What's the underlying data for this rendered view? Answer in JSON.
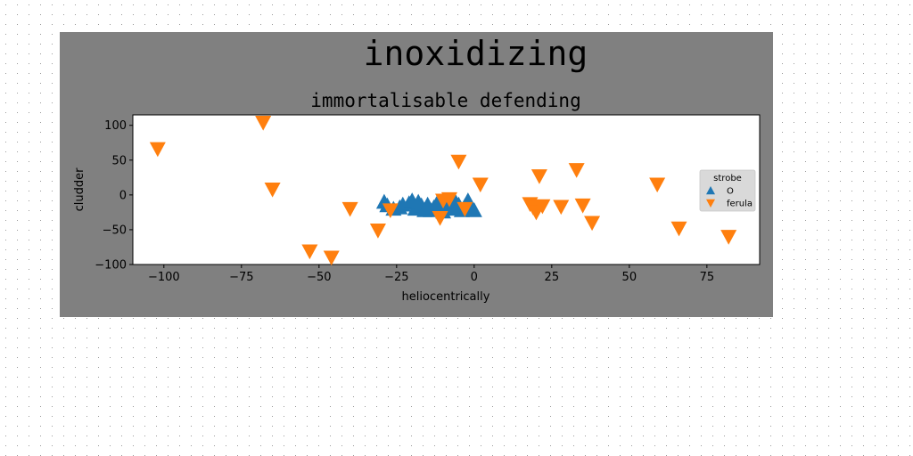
{
  "figure_title": "inoxidizing",
  "chart_data": {
    "type": "scatter",
    "title": "immortalisable defending",
    "xlabel": "heliocentrically",
    "ylabel": "cludder",
    "xlim": [
      -110,
      92
    ],
    "ylim": [
      -100,
      115
    ],
    "xticks": [
      -100,
      -75,
      -50,
      -25,
      0,
      25,
      50,
      75
    ],
    "yticks": [
      -100,
      -50,
      0,
      50,
      100
    ],
    "tick_labels_x": [
      "−100",
      "−75",
      "−50",
      "−25",
      "0",
      "25",
      "50",
      "75"
    ],
    "tick_labels_y": [
      "−100",
      "−50",
      "0",
      "50",
      "100"
    ],
    "grid": false,
    "legend": {
      "title": "strobe",
      "position": "right"
    },
    "series": [
      {
        "name": "O",
        "marker": "triangle-up",
        "color": "#1f77b4",
        "points": [
          [
            -29,
            -10
          ],
          [
            -28,
            -15
          ],
          [
            -26,
            -20
          ],
          [
            -24,
            -18
          ],
          [
            -23,
            -14
          ],
          [
            -21,
            -12
          ],
          [
            -20,
            -8
          ],
          [
            -19,
            -20
          ],
          [
            -18,
            -10
          ],
          [
            -17,
            -15
          ],
          [
            -16,
            -22
          ],
          [
            -15,
            -14
          ],
          [
            -14,
            -22
          ],
          [
            -13,
            -18
          ],
          [
            -12,
            -12
          ],
          [
            -11,
            -16
          ],
          [
            -10,
            -24
          ],
          [
            -9,
            -14
          ],
          [
            -8,
            -20
          ],
          [
            -7,
            -18
          ],
          [
            -6,
            -10
          ],
          [
            -5,
            -14
          ],
          [
            -4,
            -22
          ],
          [
            -3,
            -16
          ],
          [
            -2,
            -8
          ],
          [
            -1,
            -18
          ],
          [
            0,
            -22
          ]
        ]
      },
      {
        "name": "ferula",
        "marker": "triangle-down",
        "color": "#ff7f0e",
        "points": [
          [
            -102,
            66
          ],
          [
            -68,
            104
          ],
          [
            -65,
            8
          ],
          [
            -53,
            -81
          ],
          [
            -46,
            -90
          ],
          [
            -40,
            -20
          ],
          [
            -31,
            -51
          ],
          [
            -27,
            -22
          ],
          [
            -11,
            -33
          ],
          [
            -10,
            -8
          ],
          [
            -8,
            -6
          ],
          [
            -5,
            48
          ],
          [
            -3,
            -20
          ],
          [
            2,
            15
          ],
          [
            18,
            -13
          ],
          [
            19,
            -18
          ],
          [
            20,
            -25
          ],
          [
            21,
            27
          ],
          [
            22,
            -16
          ],
          [
            28,
            -17
          ],
          [
            33,
            36
          ],
          [
            35,
            -15
          ],
          [
            38,
            -40
          ],
          [
            59,
            15
          ],
          [
            66,
            -48
          ],
          [
            82,
            -60
          ]
        ]
      }
    ]
  }
}
